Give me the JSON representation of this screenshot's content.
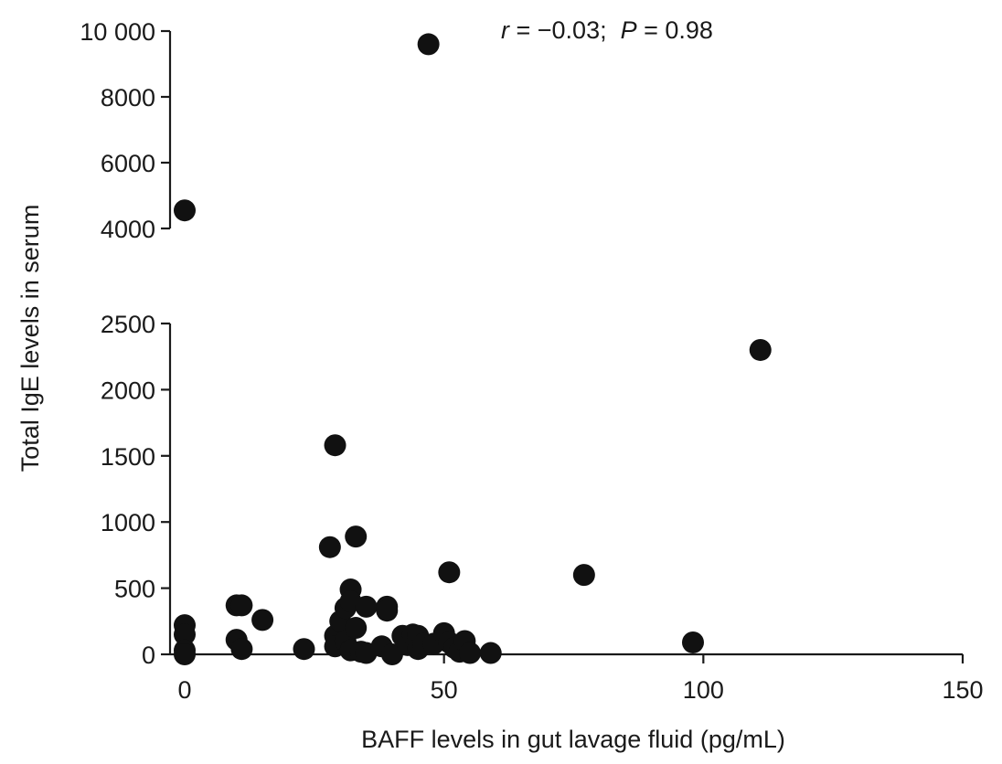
{
  "chart_data": {
    "type": "scatter",
    "xlabel": "BAFF levels in gut lavage fluid (pg/mL)",
    "ylabel": "Total IgE levels in serum",
    "annotation": {
      "r_symbol": "r",
      "r_text": " = −0.03;  ",
      "p_symbol": "P",
      "p_text": " = 0.98"
    },
    "xlim": [
      0,
      150
    ],
    "x_ticks": [
      0,
      50,
      100,
      150
    ],
    "x_tick_labels": [
      "0",
      "50",
      "100",
      "150"
    ],
    "y_axis_broken": true,
    "y_lower_range": [
      0,
      2500
    ],
    "y_lower_ticks": [
      0,
      500,
      1000,
      1500,
      2000,
      2500
    ],
    "y_lower_tick_labels": [
      "0",
      "500",
      "1000",
      "1500",
      "2000",
      "2500"
    ],
    "y_upper_range": [
      4000,
      10000
    ],
    "y_upper_ticks": [
      4000,
      6000,
      8000,
      10000
    ],
    "y_upper_tick_labels": [
      "4000",
      "6000",
      "8000",
      "10 000"
    ],
    "points": [
      {
        "x": 0,
        "y": 4550
      },
      {
        "x": 47,
        "y": 9600
      },
      {
        "x": 111,
        "y": 2300
      },
      {
        "x": 29,
        "y": 1580
      },
      {
        "x": 33,
        "y": 890
      },
      {
        "x": 28,
        "y": 810
      },
      {
        "x": 51,
        "y": 620
      },
      {
        "x": 77,
        "y": 600
      },
      {
        "x": 98,
        "y": 90
      },
      {
        "x": 0,
        "y": 220
      },
      {
        "x": 0,
        "y": 150
      },
      {
        "x": 0,
        "y": 30
      },
      {
        "x": 0,
        "y": 0
      },
      {
        "x": 10,
        "y": 370
      },
      {
        "x": 11,
        "y": 370
      },
      {
        "x": 10,
        "y": 110
      },
      {
        "x": 11,
        "y": 40
      },
      {
        "x": 15,
        "y": 260
      },
      {
        "x": 23,
        "y": 40
      },
      {
        "x": 29,
        "y": 140
      },
      {
        "x": 29,
        "y": 60
      },
      {
        "x": 30,
        "y": 250
      },
      {
        "x": 31,
        "y": 350
      },
      {
        "x": 32,
        "y": 490
      },
      {
        "x": 32,
        "y": 400
      },
      {
        "x": 31,
        "y": 100
      },
      {
        "x": 32,
        "y": 30
      },
      {
        "x": 33,
        "y": 200
      },
      {
        "x": 34,
        "y": 20
      },
      {
        "x": 35,
        "y": 360
      },
      {
        "x": 35,
        "y": 10
      },
      {
        "x": 38,
        "y": 60
      },
      {
        "x": 39,
        "y": 360
      },
      {
        "x": 39,
        "y": 330
      },
      {
        "x": 40,
        "y": 0
      },
      {
        "x": 42,
        "y": 140
      },
      {
        "x": 43,
        "y": 70
      },
      {
        "x": 44,
        "y": 150
      },
      {
        "x": 45,
        "y": 140
      },
      {
        "x": 45,
        "y": 40
      },
      {
        "x": 46,
        "y": 80
      },
      {
        "x": 48,
        "y": 80
      },
      {
        "x": 50,
        "y": 160
      },
      {
        "x": 51,
        "y": 90
      },
      {
        "x": 52,
        "y": 50
      },
      {
        "x": 53,
        "y": 20
      },
      {
        "x": 54,
        "y": 100
      },
      {
        "x": 55,
        "y": 10
      },
      {
        "x": 59,
        "y": 10
      }
    ]
  }
}
